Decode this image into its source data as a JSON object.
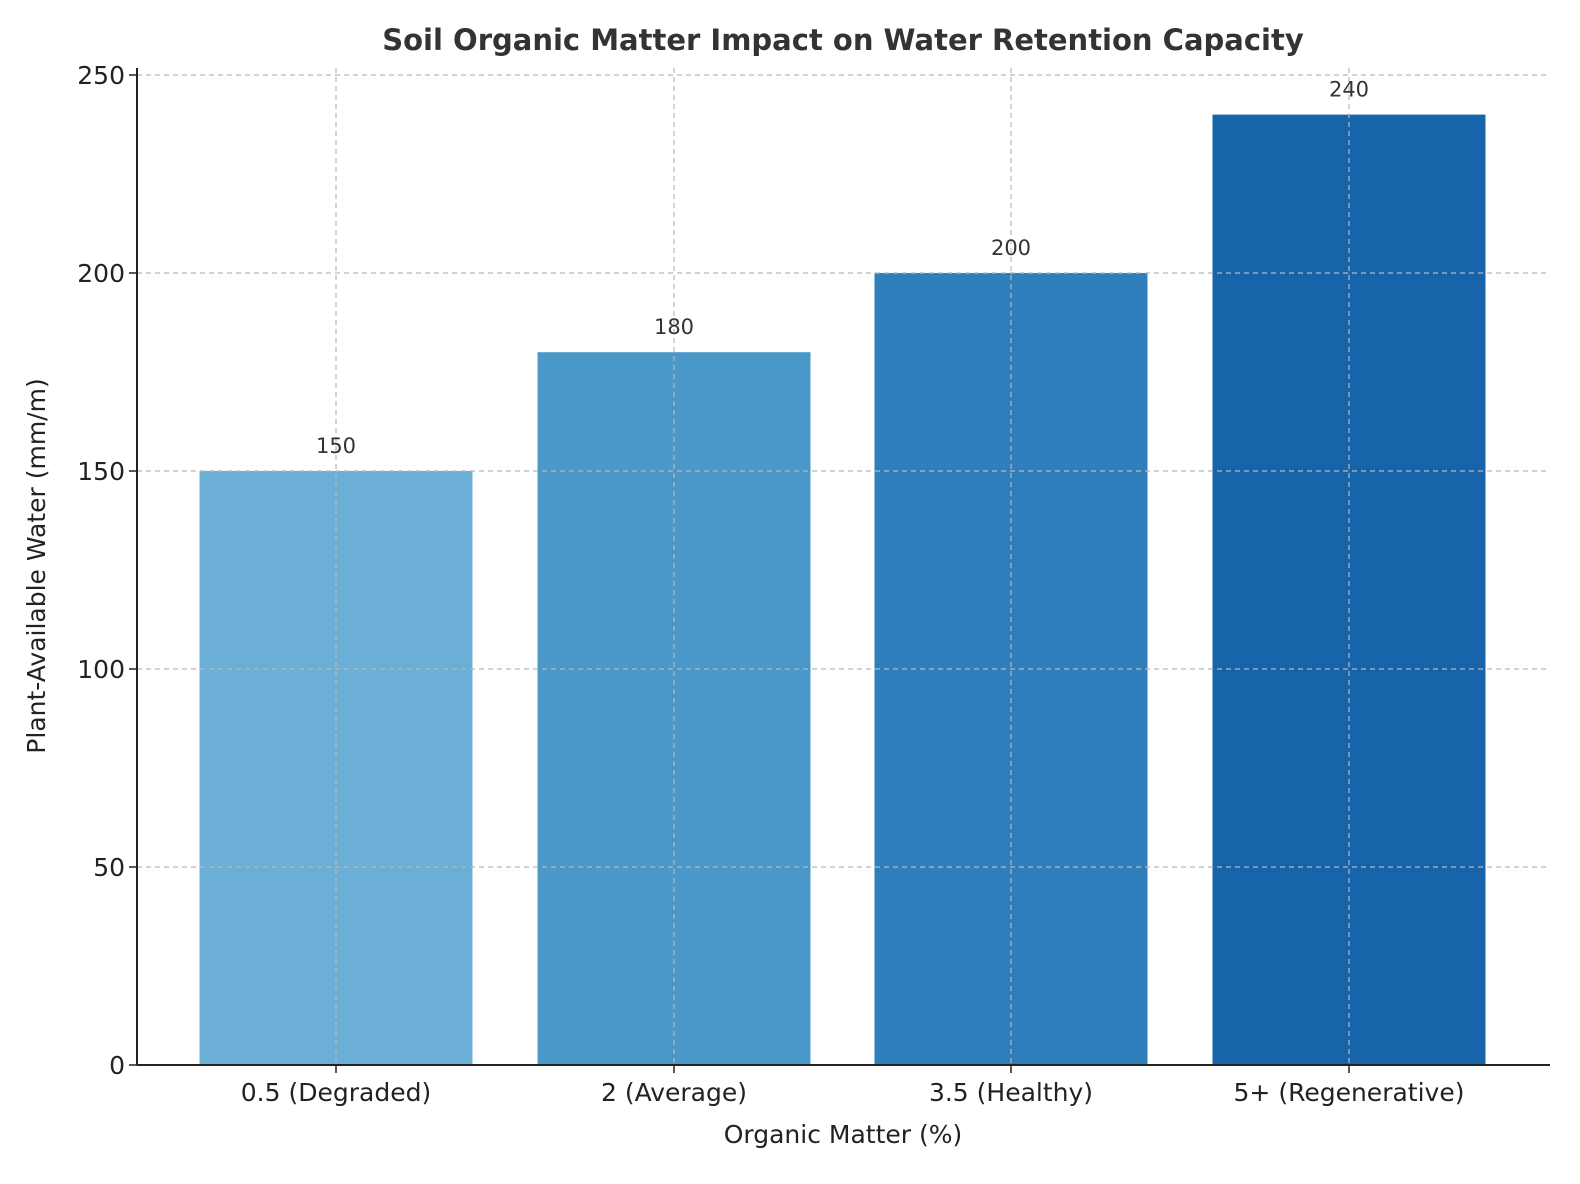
{
  "chart_data": {
    "type": "bar",
    "title": "Soil Organic Matter Impact on Water Retention Capacity",
    "xlabel": "Organic Matter (%)",
    "ylabel": "Plant-Available Water (mm/m)",
    "categories": [
      "0.5 (Degraded)",
      "2 (Average)",
      "3.5 (Healthy)",
      "5+ (Regenerative)"
    ],
    "values": [
      150,
      180,
      200,
      240
    ],
    "data_labels": [
      "150",
      "180",
      "200",
      "240"
    ],
    "colors": [
      "#6baed6",
      "#4a98c9",
      "#2e7ebc",
      "#1764ab"
    ],
    "ylim": [
      0,
      252
    ],
    "yticks": [
      0,
      50,
      100,
      150,
      200,
      250
    ],
    "ytick_labels": [
      "0",
      "50",
      "100",
      "150",
      "200",
      "250"
    ],
    "grid": true
  }
}
